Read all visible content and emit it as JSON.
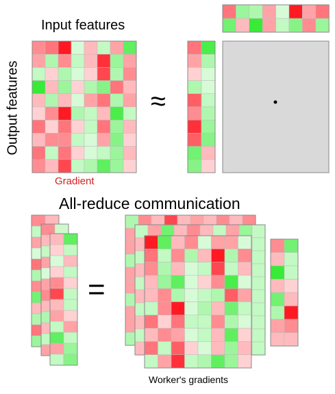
{
  "labels": {
    "input_features": "Input features",
    "output_features": "Output features",
    "gradient": "Gradient",
    "all_reduce": "All-reduce communication",
    "workers_gradients": "Worker's gradients",
    "approx_symbol": "≈",
    "equals_symbol": "="
  },
  "colors": {
    "background": "#ffffff",
    "grid_line": "#888888",
    "placeholder_fill": "#d9d9d9",
    "gradient_label": "#d42020"
  },
  "gradient_matrix": {
    "rows": 10,
    "cols": 8,
    "values": [
      [
        -0.5,
        -0.6,
        -1.0,
        0.2,
        -0.3,
        0.3,
        -0.4,
        0.8
      ],
      [
        -0.4,
        0.4,
        -0.5,
        0.3,
        -0.3,
        -0.9,
        0.5,
        -0.4
      ],
      [
        0.3,
        -0.2,
        0.4,
        0.2,
        -0.2,
        -0.8,
        0.4,
        -0.5
      ],
      [
        1.0,
        -0.3,
        0.5,
        -0.2,
        0.4,
        0.6,
        -0.6,
        -0.3
      ],
      [
        -0.3,
        0.4,
        -0.3,
        0.2,
        -0.4,
        -0.6,
        0.4,
        -0.4
      ],
      [
        -0.2,
        -0.5,
        -1.0,
        0.4,
        0.3,
        -0.3,
        0.9,
        0.3
      ],
      [
        -0.6,
        -0.2,
        -0.6,
        -0.2,
        0.3,
        -0.6,
        0.5,
        -0.3
      ],
      [
        -0.3,
        -0.5,
        -0.5,
        0.3,
        0.2,
        -0.4,
        0.6,
        -0.2
      ],
      [
        -0.6,
        0.3,
        -0.6,
        -0.2,
        0.2,
        0.3,
        0.5,
        -0.3
      ],
      [
        -0.5,
        -0.3,
        -0.8,
        0.3,
        0.4,
        0.8,
        0.5,
        -0.2
      ]
    ]
  },
  "input_vector": [
    -0.6,
    0.5,
    0.4,
    -0.4,
    0.2,
    -1.0,
    -0.4,
    -0.6
  ],
  "input_vector_2": [
    0.7,
    -0.3,
    1.0,
    -0.4,
    0.3,
    0.6,
    -0.5,
    0.5
  ],
  "output_vector": [
    [
      -0.6,
      0.9
    ],
    [
      -0.4,
      0.4
    ],
    [
      -0.2,
      0.2
    ],
    [
      0.4,
      0.2
    ],
    [
      -0.7,
      0.3
    ],
    [
      -0.5,
      0.4
    ],
    [
      -0.9,
      0.5
    ],
    [
      -0.7,
      0.6
    ],
    [
      0.7,
      -0.3
    ],
    [
      0.6,
      -0.2
    ]
  ],
  "worker_vectors": [
    [
      [
        -0.5
      ],
      [
        0.3
      ],
      [
        -0.4
      ],
      [
        0.2
      ],
      [
        -0.6
      ],
      [
        0.4
      ],
      [
        -0.5
      ],
      [
        0.7
      ],
      [
        -0.3
      ],
      [
        0.4
      ],
      [
        -0.6
      ],
      [
        0.5
      ]
    ],
    [
      [
        -0.5
      ],
      [
        -0.3
      ],
      [
        0.3
      ],
      [
        -0.4
      ],
      [
        0.2
      ],
      [
        -0.4
      ],
      [
        -0.5
      ],
      [
        -0.3
      ],
      [
        0.4
      ],
      [
        -0.3
      ],
      [
        0.3
      ],
      [
        -0.4
      ]
    ],
    [
      [
        -0.3,
        0.8
      ],
      [
        -0.2,
        0.3
      ],
      [
        0.2,
        -0.3
      ],
      [
        -0.2,
        0.3
      ],
      [
        -0.5,
        -0.2
      ],
      [
        -0.8,
        0.3
      ],
      [
        -0.3,
        0.3
      ],
      [
        -0.4,
        -0.2
      ],
      [
        0.3,
        -0.4
      ],
      [
        0.8,
        0.3
      ],
      [
        -0.4,
        0.5
      ],
      [
        0.3,
        0.6
      ]
    ]
  ],
  "worker_matrices": [
    [
      [
        -0.4,
        -0.5,
        -0.3,
        0.8,
        -0.3,
        -0.4,
        0.3,
        -0.5,
        -0.3,
        0.5
      ]
    ],
    [
      [
        -0.3,
        -0.4,
        0.7,
        -0.3,
        0.5,
        -0.3,
        0.3,
        -0.4,
        -0.5,
        0.3
      ]
    ],
    {
      "rows": 10,
      "cols": 8,
      "values": [
        [
          -1.0,
          0.8,
          -0.3,
          -0.5,
          0.2,
          -0.4,
          -0.4,
          0.2
        ],
        [
          -0.6,
          0.3,
          -0.5,
          0.4,
          -0.3,
          -1.0,
          0.4,
          -0.5
        ],
        [
          -0.5,
          0.4,
          -0.3,
          0.2,
          0.3,
          -0.8,
          0.3,
          -0.3
        ],
        [
          -0.3,
          0.5,
          0.8,
          0.2,
          -0.2,
          -0.5,
          0.9,
          0.2
        ],
        [
          -0.3,
          -0.5,
          0.4,
          0.2,
          0.3,
          0.4,
          -0.7,
          -0.4
        ],
        [
          0.3,
          -0.5,
          -1.0,
          0.2,
          0.4,
          -0.3,
          0.7,
          0.3
        ],
        [
          -0.6,
          -0.2,
          -0.6,
          0.3,
          0.3,
          -0.5,
          0.4,
          0.2
        ],
        [
          -0.3,
          -0.5,
          -0.4,
          0.2,
          0.3,
          -0.3,
          0.8,
          -0.2
        ],
        [
          -0.6,
          0.3,
          -0.7,
          -0.2,
          0.2,
          -0.3,
          0.5,
          -0.3
        ],
        [
          0.3,
          -0.4,
          -0.9,
          0.3,
          0.4,
          0.8,
          0.5,
          -0.2
        ]
      ]
    }
  ],
  "right_vector": [
    [
      -0.5,
      0.7
    ],
    [
      -0.3,
      0.3
    ],
    [
      1.0,
      0.3
    ],
    [
      -0.3,
      -0.2
    ],
    [
      0.7,
      -0.3
    ],
    [
      0.4,
      -1.0
    ],
    [
      -0.4,
      -0.5
    ],
    [
      -0.3,
      -0.3
    ]
  ]
}
